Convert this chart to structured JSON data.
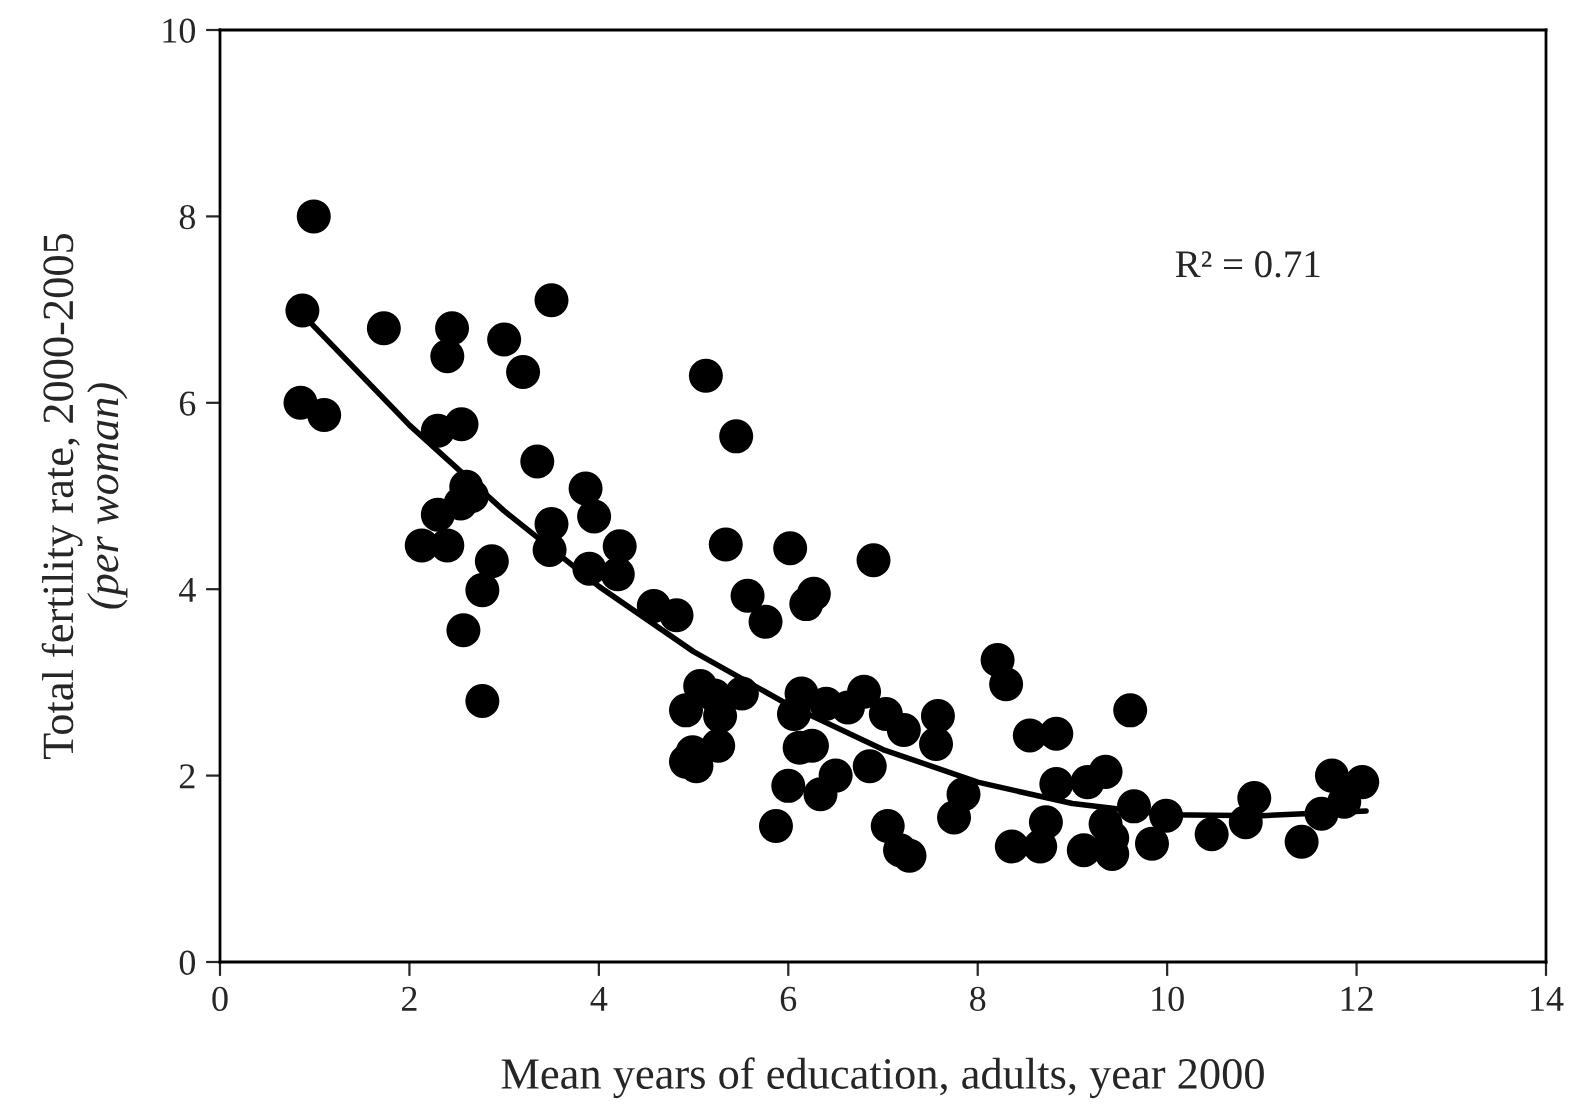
{
  "chart_data": {
    "type": "scatter",
    "xlabel": "Mean years of education, adults, year 2000",
    "ylabel": "Total fertility rate, 2000-2005\n(per woman)",
    "xlim": [
      0,
      14
    ],
    "ylim": [
      0,
      10
    ],
    "xticks": [
      0,
      2,
      4,
      6,
      8,
      10,
      12,
      14
    ],
    "yticks": [
      0,
      2,
      4,
      6,
      8,
      10
    ],
    "grid": false,
    "marker": "circle",
    "annotations": [
      "R² = 0.71"
    ],
    "series": [
      {
        "color": "#000000",
        "x": [
          0.87,
          0.99,
          0.85,
          1.1,
          1.73,
          2.45,
          2.4,
          3.0,
          3.2,
          3.5,
          3.35,
          2.3,
          2.55,
          2.6,
          2.66,
          2.54,
          2.3,
          2.13,
          2.4,
          2.87,
          2.77,
          2.57,
          2.77,
          3.5,
          3.48,
          3.86,
          3.95,
          4.22,
          3.9,
          4.2,
          4.58,
          4.82,
          5.13,
          5.45,
          5.34,
          5.57,
          5.76,
          6.02,
          6.9,
          6.19,
          6.27,
          5.07,
          5.22,
          5.51,
          4.92,
          5.28,
          5.26,
          4.99,
          4.92,
          5.03,
          6.14,
          6.06,
          6.4,
          6.63,
          6.8,
          7.03,
          7.22,
          7.58,
          7.56,
          6.12,
          6.25,
          6.5,
          6.34,
          6.0,
          6.86,
          5.87,
          7.05,
          7.18,
          7.28,
          7.85,
          7.75,
          8.21,
          8.3,
          8.55,
          8.83,
          9.61,
          8.83,
          9.16,
          9.35,
          8.36,
          8.66,
          8.72,
          9.12,
          9.35,
          9.42,
          9.42,
          9.65,
          9.84,
          9.99,
          10.47,
          10.83,
          10.92,
          11.42,
          11.63,
          11.74,
          12.06,
          11.87
        ],
        "values": [
          6.99,
          8.0,
          6.0,
          5.87,
          6.8,
          6.8,
          6.5,
          6.68,
          6.33,
          7.1,
          5.37,
          5.7,
          5.77,
          5.1,
          5.0,
          4.92,
          4.8,
          4.47,
          4.47,
          4.3,
          3.99,
          3.56,
          2.8,
          4.7,
          4.42,
          5.08,
          4.78,
          4.46,
          4.22,
          4.16,
          3.82,
          3.72,
          6.29,
          5.64,
          4.48,
          3.93,
          3.65,
          4.44,
          4.31,
          3.84,
          3.95,
          2.96,
          2.86,
          2.88,
          2.7,
          2.64,
          2.32,
          2.25,
          2.15,
          2.1,
          2.88,
          2.66,
          2.77,
          2.73,
          2.9,
          2.66,
          2.49,
          2.64,
          2.34,
          2.3,
          2.32,
          2.0,
          1.8,
          1.89,
          2.1,
          1.46,
          1.46,
          1.2,
          1.14,
          1.8,
          1.55,
          3.24,
          2.98,
          2.43,
          2.45,
          2.7,
          1.91,
          1.93,
          2.04,
          1.24,
          1.24,
          1.5,
          1.2,
          1.48,
          1.33,
          1.16,
          1.67,
          1.27,
          1.57,
          1.37,
          1.5,
          1.76,
          1.29,
          1.59,
          2.0,
          1.93,
          1.72
        ]
      },
      {
        "type": "line",
        "marker": "none",
        "color": "#000000",
        "x": [
          0.85,
          2,
          3,
          4,
          5,
          6,
          7,
          8,
          9,
          10,
          11,
          12.1
        ],
        "values": [
          6.97,
          5.76,
          4.84,
          4.03,
          3.33,
          2.76,
          2.28,
          1.93,
          1.7,
          1.58,
          1.57,
          1.62
        ]
      }
    ]
  }
}
